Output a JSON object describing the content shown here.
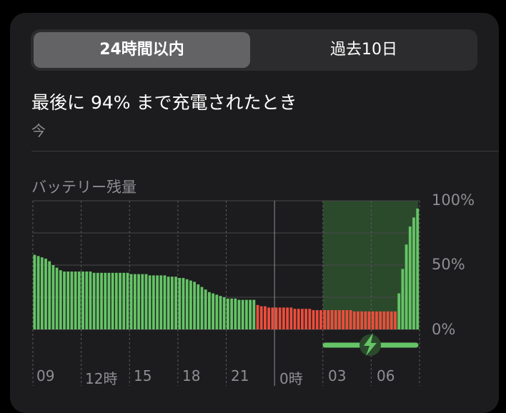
{
  "segmented_control": {
    "selected": "24時間以内",
    "other": "過去10日"
  },
  "summary": {
    "title": "最後に 94% まで充電されたとき",
    "subtitle": "今"
  },
  "chart_data": {
    "type": "bar",
    "title": "バッテリー残量",
    "y_ticks": [
      "100%",
      "50%",
      "0%"
    ],
    "x_ticks": [
      "09",
      "12時",
      "15",
      "18",
      "21",
      "0時",
      "03",
      "06"
    ],
    "ylim": [
      0,
      100
    ],
    "low_battery_color": "#eb4e3d",
    "normal_color": "#65c466",
    "charging_interval": {
      "start_bar": 60,
      "end_bar": 79
    },
    "values": [
      58,
      57,
      56,
      55,
      53,
      50,
      48,
      46,
      45,
      45,
      45,
      45,
      45,
      45,
      45,
      45,
      44,
      44,
      44,
      44,
      44,
      44,
      44,
      44,
      44,
      44,
      43,
      43,
      43,
      43,
      43,
      42,
      42,
      42,
      42,
      42,
      41,
      41,
      41,
      40,
      40,
      39,
      38,
      37,
      35,
      33,
      31,
      29,
      28,
      27,
      26,
      25,
      24,
      24,
      24,
      23,
      23,
      23,
      23,
      23,
      19,
      18,
      18,
      17,
      17,
      17,
      17,
      17,
      17,
      17,
      16,
      16,
      16,
      16,
      16,
      15,
      15,
      15,
      15,
      15,
      15,
      15,
      15,
      15,
      15,
      15,
      14,
      14,
      14,
      14,
      14,
      14,
      14,
      14,
      14,
      14,
      14,
      14,
      28,
      47,
      66,
      80,
      87,
      94
    ],
    "low_flags": [
      0,
      0,
      0,
      0,
      0,
      0,
      0,
      0,
      0,
      0,
      0,
      0,
      0,
      0,
      0,
      0,
      0,
      0,
      0,
      0,
      0,
      0,
      0,
      0,
      0,
      0,
      0,
      0,
      0,
      0,
      0,
      0,
      0,
      0,
      0,
      0,
      0,
      0,
      0,
      0,
      0,
      0,
      0,
      0,
      0,
      0,
      0,
      0,
      0,
      0,
      0,
      0,
      0,
      0,
      0,
      0,
      0,
      0,
      0,
      0,
      1,
      1,
      1,
      1,
      1,
      1,
      1,
      1,
      1,
      1,
      1,
      1,
      1,
      1,
      1,
      1,
      1,
      1,
      1,
      1,
      1,
      1,
      1,
      1,
      1,
      1,
      1,
      1,
      1,
      1,
      1,
      1,
      1,
      1,
      1,
      1,
      1,
      1,
      0,
      0,
      0,
      0,
      0,
      0
    ]
  }
}
